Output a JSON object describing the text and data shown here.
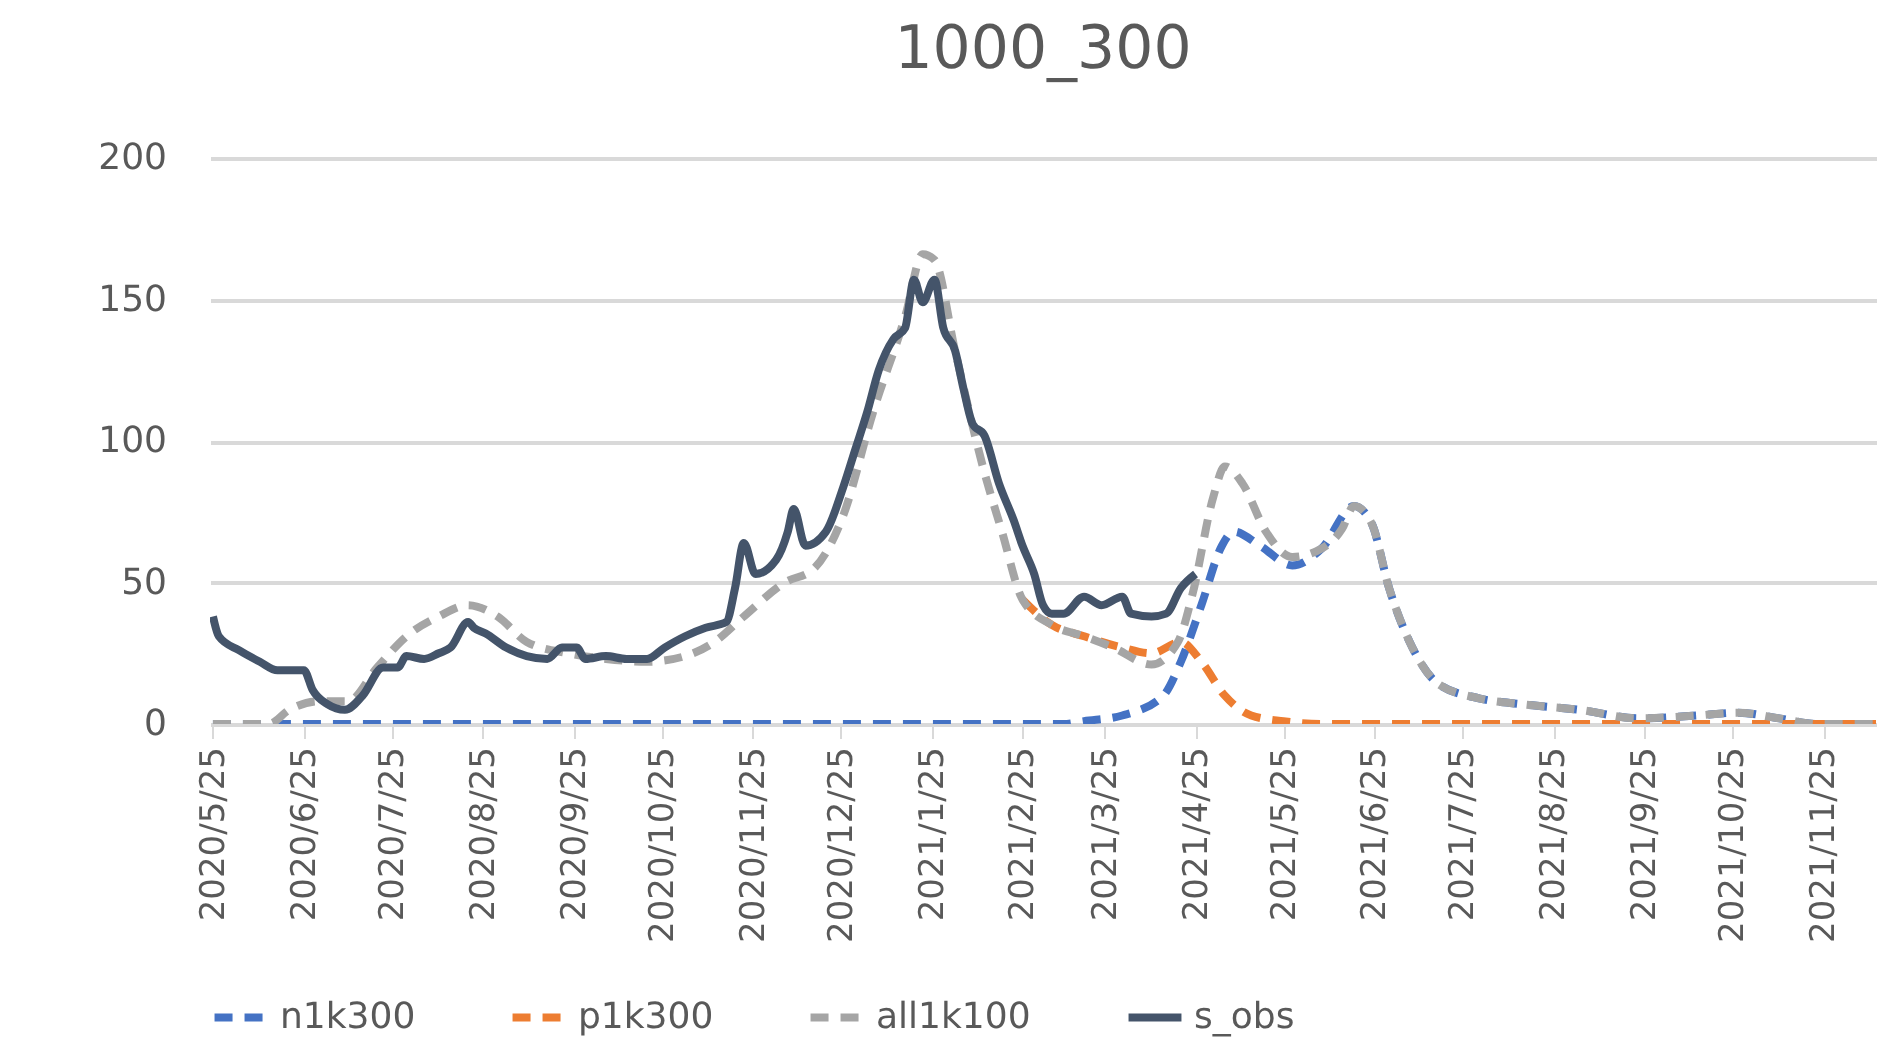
{
  "chart_data": {
    "type": "line",
    "title": "1000_300",
    "xlim": [
      "2020-05-24",
      "2021-12-13"
    ],
    "xticks": [
      {
        "value": "2020-05-25",
        "label": "2020/5/25"
      },
      {
        "value": "2020-06-25",
        "label": "2020/6/25"
      },
      {
        "value": "2020-07-25",
        "label": "2020/7/25"
      },
      {
        "value": "2020-08-25",
        "label": "2020/8/25"
      },
      {
        "value": "2020-09-25",
        "label": "2020/9/25"
      },
      {
        "value": "2020-10-25",
        "label": "2020/10/25"
      },
      {
        "value": "2020-11-25",
        "label": "2020/11/25"
      },
      {
        "value": "2020-12-25",
        "label": "2020/12/25"
      },
      {
        "value": "2021-01-25",
        "label": "2021/1/25"
      },
      {
        "value": "2021-02-25",
        "label": "2021/2/25"
      },
      {
        "value": "2021-03-25",
        "label": "2021/3/25"
      },
      {
        "value": "2021-04-25",
        "label": "2021/4/25"
      },
      {
        "value": "2021-05-25",
        "label": "2021/5/25"
      },
      {
        "value": "2021-06-25",
        "label": "2021/6/25"
      },
      {
        "value": "2021-07-25",
        "label": "2021/7/25"
      },
      {
        "value": "2021-08-25",
        "label": "2021/8/25"
      },
      {
        "value": "2021-09-25",
        "label": "2021/9/25"
      },
      {
        "value": "2021-10-25",
        "label": "2021/10/25"
      },
      {
        "value": "2021-11-25",
        "label": "2021/11/25"
      }
    ],
    "ylim": [
      0,
      200
    ],
    "yticks": [
      0,
      50,
      100,
      150,
      200
    ],
    "grid": "y",
    "legend": "bottom",
    "series": [
      {
        "name": "n1k300",
        "color": "#4472c4",
        "line_style": "dashed",
        "x": [
          "2020-05-25",
          "2021-02-25",
          "2021-03-11",
          "2021-03-18",
          "2021-03-31",
          "2021-04-14",
          "2021-04-20",
          "2021-04-27",
          "2021-05-04",
          "2021-05-08",
          "2021-05-17",
          "2021-05-28",
          "2021-06-07",
          "2021-06-18",
          "2021-06-24",
          "2021-06-30",
          "2021-07-07",
          "2021-07-17",
          "2021-07-31",
          "2021-08-14",
          "2021-09-03",
          "2021-09-23",
          "2021-10-13",
          "2021-10-27",
          "2021-11-10",
          "2021-11-23",
          "2021-12-13"
        ],
        "values": [
          0,
          0,
          0,
          1,
          3,
          10,
          22,
          42,
          63,
          68,
          63,
          56,
          62,
          77,
          71,
          48,
          29,
          14,
          9,
          7,
          5,
          2,
          3,
          4,
          2,
          0,
          0
        ]
      },
      {
        "name": "p1k300",
        "color": "#ed7d31",
        "line_style": "dashed",
        "x": [
          "2021-02-25",
          "2021-03-07",
          "2021-03-18",
          "2021-03-31",
          "2021-04-10",
          "2021-04-20",
          "2021-04-27",
          "2021-05-05",
          "2021-05-14",
          "2021-05-25",
          "2021-06-07",
          "2021-12-13"
        ],
        "values": [
          44,
          35,
          31,
          27,
          25,
          29,
          22,
          10,
          3,
          1,
          0,
          0
        ]
      },
      {
        "name": "all1k100",
        "color": "#a5a5a5",
        "line_style": "dashed",
        "x": [
          "2020-05-25",
          "2020-06-13",
          "2020-06-20",
          "2020-06-30",
          "2020-07-10",
          "2020-07-20",
          "2020-07-30",
          "2020-08-10",
          "2020-08-20",
          "2020-08-30",
          "2020-09-09",
          "2020-09-23",
          "2020-10-06",
          "2020-10-20",
          "2020-11-02",
          "2020-11-12",
          "2020-11-22",
          "2020-12-06",
          "2020-12-16",
          "2020-12-26",
          "2021-01-05",
          "2021-01-16",
          "2021-01-22",
          "2021-01-26",
          "2021-02-02",
          "2021-02-12",
          "2021-02-18",
          "2021-02-25",
          "2021-03-07",
          "2021-03-18",
          "2021-03-28",
          "2021-04-10",
          "2021-04-19",
          "2021-04-24",
          "2021-05-01",
          "2021-05-05",
          "2021-05-11",
          "2021-05-19",
          "2021-05-28",
          "2021-06-07",
          "2021-06-14",
          "2021-06-18",
          "2021-06-24",
          "2021-06-30",
          "2021-07-07",
          "2021-07-17",
          "2021-07-31",
          "2021-08-14",
          "2021-09-03",
          "2021-09-23",
          "2021-10-13",
          "2021-10-27",
          "2021-11-10",
          "2021-11-23",
          "2021-12-13"
        ],
        "values": [
          0,
          0,
          5,
          8,
          8,
          20,
          31,
          38,
          42,
          38,
          29,
          25,
          23,
          22,
          24,
          29,
          38,
          50,
          55,
          74,
          110,
          144,
          166,
          164,
          132,
          89,
          68,
          44,
          35,
          31,
          27,
          21,
          29,
          46,
          80,
          91,
          85,
          68,
          59,
          62,
          69,
          77,
          71,
          48,
          29,
          14,
          9,
          7,
          5,
          2,
          3,
          4,
          2,
          0,
          0
        ]
      },
      {
        "name": "s_obs",
        "color": "#44546a",
        "line_style": "solid",
        "x": [
          "2020-05-25",
          "2020-05-27",
          "2020-06-03",
          "2020-06-10",
          "2020-06-16",
          "2020-06-25",
          "2020-06-28",
          "2020-07-03",
          "2020-07-09",
          "2020-07-15",
          "2020-07-22",
          "2020-07-27",
          "2020-07-30",
          "2020-08-05",
          "2020-08-10",
          "2020-08-14",
          "2020-08-20",
          "2020-08-22",
          "2020-08-26",
          "2020-09-02",
          "2020-09-09",
          "2020-09-16",
          "2020-09-21",
          "2020-09-26",
          "2020-09-29",
          "2020-10-06",
          "2020-10-13",
          "2020-10-20",
          "2020-10-26",
          "2020-11-02",
          "2020-11-09",
          "2020-11-16",
          "2020-11-19",
          "2020-11-22",
          "2020-11-26",
          "2020-12-03",
          "2020-12-07",
          "2020-12-09",
          "2020-12-13",
          "2020-12-20",
          "2020-12-26",
          "2020-12-30",
          "2021-01-03",
          "2021-01-07",
          "2021-01-12",
          "2021-01-16",
          "2021-01-19",
          "2021-01-22",
          "2021-01-26",
          "2021-01-29",
          "2021-02-02",
          "2021-02-05",
          "2021-02-08",
          "2021-02-12",
          "2021-02-17",
          "2021-02-22",
          "2021-02-25",
          "2021-03-01",
          "2021-03-04",
          "2021-03-07",
          "2021-03-11",
          "2021-03-18",
          "2021-03-24",
          "2021-03-31",
          "2021-04-03",
          "2021-04-10",
          "2021-04-15",
          "2021-04-20",
          "2021-04-25"
        ],
        "values": [
          38,
          31,
          26,
          22,
          19,
          19,
          12,
          7,
          5,
          10,
          20,
          20,
          24,
          23,
          25,
          27,
          36,
          34,
          32,
          27,
          24,
          23,
          27,
          27,
          23,
          24,
          23,
          23,
          27,
          31,
          34,
          36,
          48,
          64,
          53,
          58,
          68,
          76,
          63,
          68,
          84,
          97,
          110,
          125,
          136,
          140,
          157,
          149,
          157,
          140,
          132,
          118,
          106,
          102,
          85,
          72,
          63,
          53,
          42,
          39,
          39,
          45,
          42,
          45,
          39,
          38,
          39,
          48,
          53
        ]
      }
    ]
  }
}
